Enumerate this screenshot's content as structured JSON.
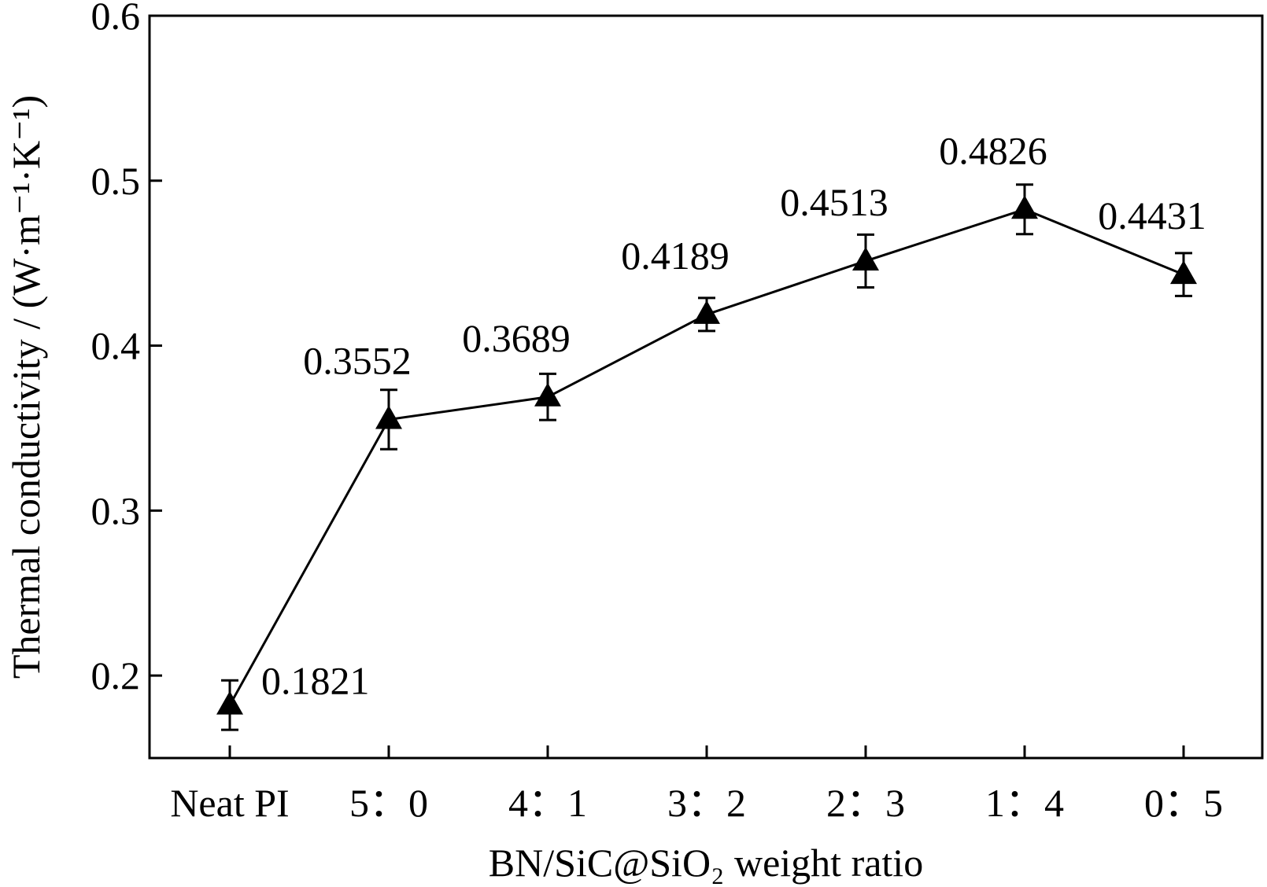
{
  "chart_data": {
    "type": "line",
    "title": "",
    "xlabel": "BN/SiC@SiO₂ weight ratio",
    "ylabel": "Thermal conductivity / (W·m⁻¹·K⁻¹)",
    "categories": [
      "Neat PI",
      "5：0",
      "4：1",
      "3：2",
      "2：3",
      "1：4",
      "0：5"
    ],
    "series": [
      {
        "values": [
          0.1821,
          0.3552,
          0.3689,
          0.4189,
          0.4513,
          0.4826,
          0.4431
        ],
        "errors": [
          0.015,
          0.018,
          0.014,
          0.01,
          0.016,
          0.015,
          0.013
        ],
        "labels": [
          "0.1821",
          "0.3552",
          "0.3689",
          "0.4189",
          "0.4513",
          "0.4826",
          "0.4431"
        ],
        "marker": "triangle",
        "color": "#000000"
      }
    ],
    "ylim": [
      0.15,
      0.6
    ],
    "yticks": [
      0.2,
      0.3,
      0.4,
      0.5,
      0.6
    ],
    "ytick_labels": [
      "0.2",
      "0.3",
      "0.4",
      "0.5",
      "0.6"
    ],
    "grid": false,
    "legend": "none"
  }
}
